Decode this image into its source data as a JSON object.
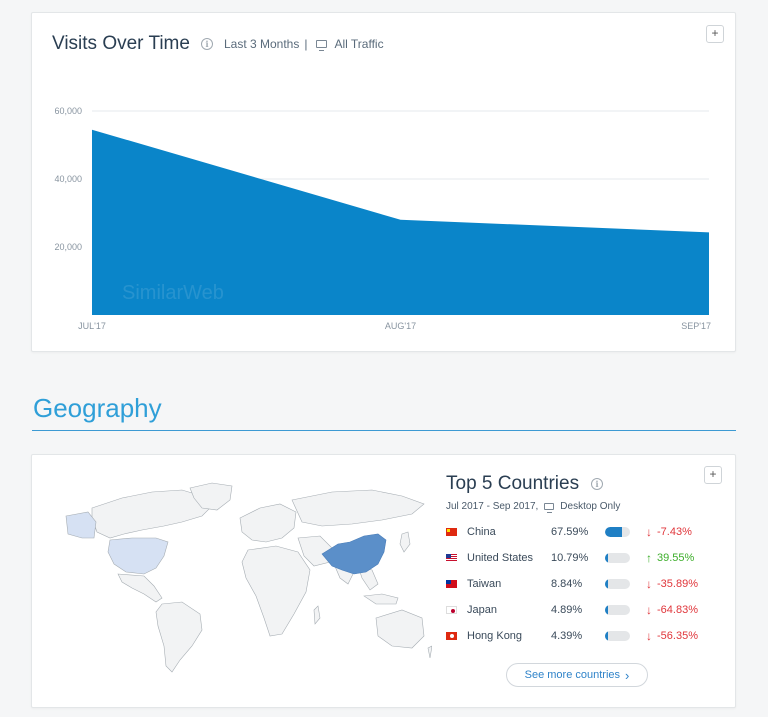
{
  "visits_card": {
    "title": "Visits Over Time",
    "info_icon": "info-icon",
    "period": "Last 3 Months",
    "separator": "|",
    "traffic": "All Traffic",
    "expand_label": "+",
    "watermark": "SimilarWeb"
  },
  "chart_data": {
    "type": "area",
    "categories": [
      "JUL'17",
      "AUG'17",
      "SEP'17"
    ],
    "values": [
      54500,
      28000,
      24300
    ],
    "title": "",
    "xlabel": "",
    "ylabel": "",
    "ylim": [
      0,
      60000
    ],
    "yticks": [
      20000,
      40000,
      60000
    ],
    "ytick_labels": [
      "20,000",
      "40,000",
      "60,000"
    ],
    "grid": true,
    "color": "#0a85c9"
  },
  "geography": {
    "heading": "Geography",
    "accent": "#2f9fd8"
  },
  "countries_card": {
    "title": "Top 5 Countries",
    "date_range": "Jul 2017 - Sep 2017,",
    "device": "Desktop Only",
    "expand_label": "+",
    "see_more": "See more countries",
    "chevron": "›",
    "countries": [
      {
        "name": "China",
        "share": "67.59%",
        "share_value": 0.6759,
        "change": "-7.43%",
        "direction": "down"
      },
      {
        "name": "United States",
        "share": "10.79%",
        "share_value": 0.1079,
        "change": "39.55%",
        "direction": "up"
      },
      {
        "name": "Taiwan",
        "share": "8.84%",
        "share_value": 0.0884,
        "change": "-35.89%",
        "direction": "down"
      },
      {
        "name": "Japan",
        "share": "4.89%",
        "share_value": 0.0489,
        "change": "-64.83%",
        "direction": "down"
      },
      {
        "name": "Hong Kong",
        "share": "4.39%",
        "share_value": 0.0439,
        "change": "-56.35%",
        "direction": "down"
      }
    ],
    "colors": {
      "bar": "#1f7fc4",
      "up": "#3dae2b",
      "down": "#e0363b",
      "china_map": "#5b8fc9",
      "us_map": "#d6e1f3"
    }
  }
}
